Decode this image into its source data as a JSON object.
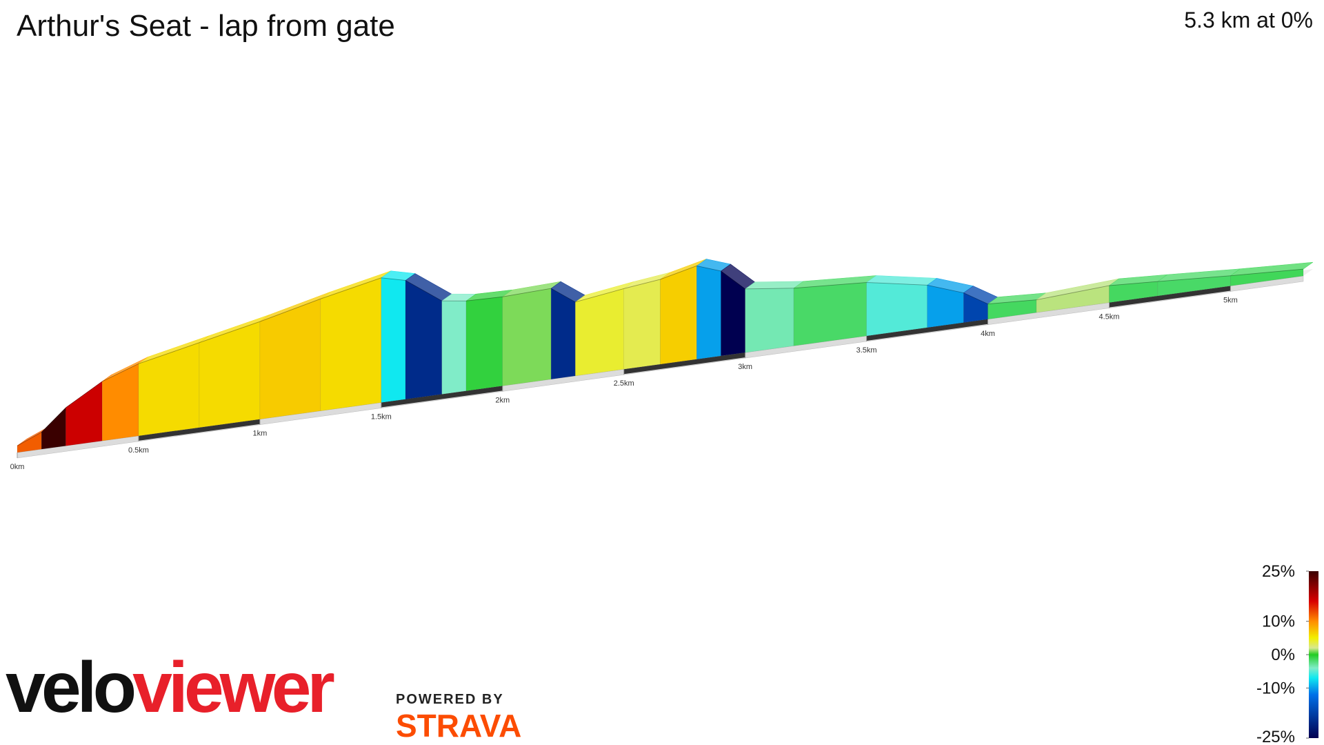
{
  "chart_data": {
    "type": "elevation-profile",
    "title": "Arthur's Seat - lap from gate",
    "subtitle": "5.3 km at 0%",
    "x": [
      0,
      0.1,
      0.2,
      0.35,
      0.5,
      0.75,
      1.0,
      1.25,
      1.5,
      1.6,
      1.75,
      1.85,
      2.0,
      2.2,
      2.3,
      2.5,
      2.65,
      2.8,
      2.9,
      3.0,
      3.2,
      3.5,
      3.75,
      3.9,
      4.0,
      4.2,
      4.5,
      4.7,
      5.0,
      5.3
    ],
    "values": [
      8,
      20,
      45,
      70,
      85,
      100,
      115,
      132,
      147,
      140,
      110,
      106,
      105,
      107,
      87,
      95,
      100,
      110,
      100,
      75,
      68,
      63,
      50,
      35,
      18,
      15,
      20,
      17,
      12,
      8
    ],
    "xlim": [
      0,
      5.3
    ],
    "xticks": [
      {
        "value": 0,
        "label": "0km"
      },
      {
        "value": 0.5,
        "label": "0.5km"
      },
      {
        "value": 1,
        "label": "1km"
      },
      {
        "value": 1.5,
        "label": "1.5km"
      },
      {
        "value": 2,
        "label": "2km"
      },
      {
        "value": 2.5,
        "label": "2.5km"
      },
      {
        "value": 3,
        "label": "3km"
      },
      {
        "value": 3.5,
        "label": "3.5km"
      },
      {
        "value": 4,
        "label": "4km"
      },
      {
        "value": 4.5,
        "label": "4.5km"
      },
      {
        "value": 5,
        "label": "5km"
      }
    ],
    "colorbar": {
      "lim": [
        -25,
        25
      ],
      "ticks": [
        {
          "value": 25,
          "label": "25%"
        },
        {
          "value": 10,
          "label": "10%"
        },
        {
          "value": 0,
          "label": "0%"
        },
        {
          "value": -10,
          "label": "-10%"
        },
        {
          "value": -25,
          "label": "-25%"
        }
      ],
      "stops": [
        {
          "value": 25,
          "color": "#3a0000"
        },
        {
          "value": 16,
          "color": "#d80000"
        },
        {
          "value": 10,
          "color": "#ff8c00"
        },
        {
          "value": 5,
          "color": "#f2ef00"
        },
        {
          "value": 2,
          "color": "#d8e890"
        },
        {
          "value": 0,
          "color": "#22cc22"
        },
        {
          "value": -4,
          "color": "#80ecc8"
        },
        {
          "value": -7,
          "color": "#10e8f0"
        },
        {
          "value": -12,
          "color": "#0070e8"
        },
        {
          "value": -25,
          "color": "#000050"
        }
      ]
    }
  },
  "branding": {
    "logo_dark": "velo",
    "logo_red": "viewer",
    "powered": "POWERED BY",
    "strava": "STRAVA"
  }
}
